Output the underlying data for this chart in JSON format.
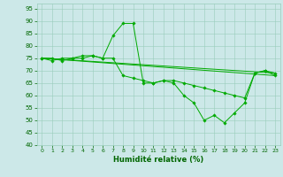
{
  "xlabel": "Humidité relative (%)",
  "background_color": "#cce8e8",
  "grid_color": "#99ccbb",
  "line_color": "#00aa00",
  "xlim": [
    -0.5,
    23.5
  ],
  "ylim": [
    40,
    97
  ],
  "yticks": [
    40,
    45,
    50,
    55,
    60,
    65,
    70,
    75,
    80,
    85,
    90,
    95
  ],
  "xticks": [
    0,
    1,
    2,
    3,
    4,
    5,
    6,
    7,
    8,
    9,
    10,
    11,
    12,
    13,
    14,
    15,
    16,
    17,
    18,
    19,
    20,
    21,
    22,
    23
  ],
  "series1": [
    [
      0,
      75
    ],
    [
      1,
      75
    ],
    [
      2,
      74
    ],
    [
      3,
      75
    ],
    [
      4,
      75
    ],
    [
      5,
      76
    ],
    [
      6,
      75
    ],
    [
      7,
      84
    ],
    [
      8,
      89
    ],
    [
      9,
      89
    ],
    [
      10,
      65
    ],
    [
      11,
      65
    ],
    [
      12,
      66
    ],
    [
      13,
      65
    ],
    [
      14,
      60
    ],
    [
      15,
      57
    ],
    [
      16,
      50
    ],
    [
      17,
      52
    ],
    [
      18,
      49
    ],
    [
      19,
      53
    ],
    [
      20,
      57
    ],
    [
      21,
      69
    ],
    [
      22,
      70
    ],
    [
      23,
      69
    ]
  ],
  "series2": [
    [
      0,
      75
    ],
    [
      1,
      74
    ],
    [
      2,
      75
    ],
    [
      3,
      75
    ],
    [
      4,
      76
    ],
    [
      5,
      76
    ],
    [
      6,
      75
    ],
    [
      7,
      75
    ],
    [
      8,
      68
    ],
    [
      9,
      67
    ],
    [
      10,
      66
    ],
    [
      11,
      65
    ],
    [
      12,
      66
    ],
    [
      13,
      66
    ],
    [
      14,
      65
    ],
    [
      15,
      64
    ],
    [
      16,
      63
    ],
    [
      17,
      62
    ],
    [
      18,
      61
    ],
    [
      19,
      60
    ],
    [
      20,
      59
    ],
    [
      21,
      69
    ],
    [
      22,
      70
    ],
    [
      23,
      68
    ]
  ],
  "series3": [
    [
      0,
      75
    ],
    [
      23,
      68
    ]
  ],
  "series4": [
    [
      0,
      75
    ],
    [
      23,
      69
    ]
  ],
  "xlabel_fontsize": 6,
  "tick_fontsize": 5
}
